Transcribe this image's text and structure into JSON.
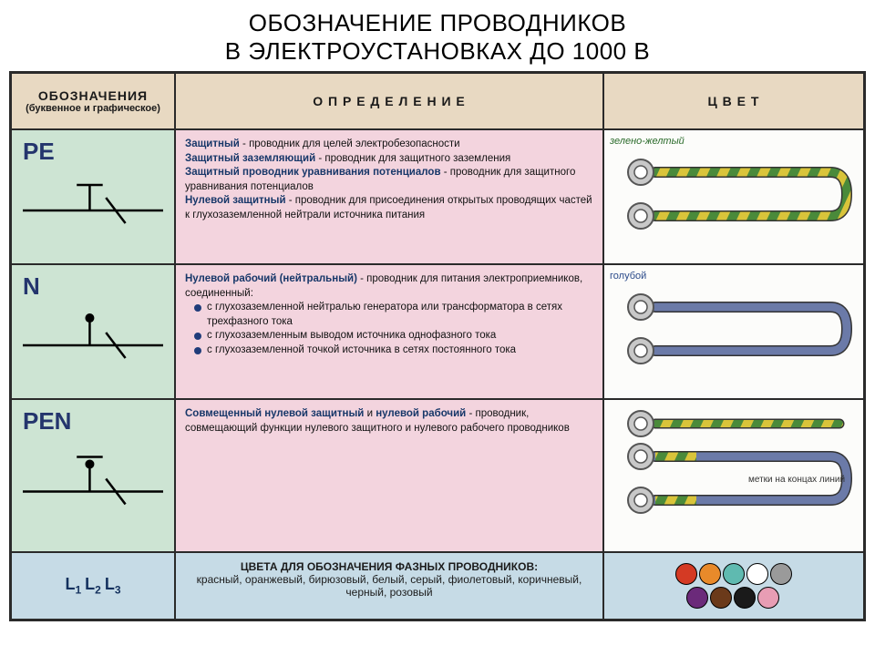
{
  "title": {
    "line1": "ОБОЗНАЧЕНИЕ ПРОВОДНИКОВ",
    "line2": "В ЭЛЕКТРОУСТАНОВКАХ ДО 1000 В"
  },
  "headers": {
    "col_a": "ОБОЗНАЧЕНИЯ",
    "col_a_sub": "(буквенное и графическое)",
    "col_b": "О П Р Е Д Е Л Е Н И Е",
    "col_c": "Ц В Е Т"
  },
  "rows": [
    {
      "symbol": "PE",
      "symbol_glyph": "pe",
      "definition_html": "<b class='term'>Защитный</b> - проводник для целей электробезопасности<br><b class='term'>Защитный заземляющий</b> - проводник для защитного заземления<br><b class='term'>Защитный проводник уравнивания потенциалов</b> - проводник для защитного уравнивания потенциалов<br><b class='term'>Нулевой защитный</b> - проводник для присоединения открытых проводящих частей к глухозаземленной нейтрали источника питания",
      "color_label": "зелено-желтый",
      "color_label_class": "",
      "wire_type": "green-yellow",
      "note": ""
    },
    {
      "symbol": "N",
      "symbol_glyph": "n",
      "definition_html": "<b class='term'>Нулевой рабочий (нейтральный)</b> - проводник для питания электроприемников, соединенный:<br><span class='bullet'><span class='dot'></span><span>с глухозаземленной нейтралью генератора или трансформатора в сетях трехфазного тока</span></span><span class='bullet'><span class='dot'></span><span>с глухозаземленным выводом источника однофазного тока</span></span><span class='bullet'><span class='dot'></span><span>с глухозаземленной точкой источника в сетях постоянного тока</span></span>",
      "color_label": "голубой",
      "color_label_class": "blue",
      "wire_type": "blue",
      "note": ""
    },
    {
      "symbol": "PEN",
      "symbol_glyph": "pen",
      "definition_html": "<b class='term'>Совмещенный нулевой защитный</b> и <b class='term'>нулевой рабочий</b> - проводник, совмещающий функции нулевого защитного и нулевого рабочего проводников",
      "color_label": "",
      "color_label_class": "",
      "wire_type": "pen",
      "note": "метки на концах линий"
    }
  ],
  "footer": {
    "labels": [
      "L1",
      "L2",
      "L3"
    ],
    "text_line1": "ЦВЕТА ДЛЯ ОБОЗНАЧЕНИЯ ФАЗНЫХ ПРОВОДНИКОВ:",
    "text_line2": "красный, оранжевый, бирюзовый, белый, серый, фиолетовый, коричневый, черный, розовый",
    "dot_colors_top": [
      "#d43a24",
      "#e88a2a",
      "#5fbab0",
      "#ffffff",
      "#9a9a9a"
    ],
    "dot_colors_bottom": [
      "#6b2a7a",
      "#6b3a1a",
      "#1a1a1a",
      "#e89db4"
    ]
  },
  "colors": {
    "border": "#2a2a2a",
    "header_bg": "#e8d9c2",
    "symbol_bg": "#cde4d3",
    "def_bg": "#f3d4de",
    "color_bg": "#fcfcfa",
    "footer_bg": "#c6dbe6",
    "term_color": "#173769",
    "wire_blue": "#6b7aa8",
    "wire_green": "#4a8a3a",
    "wire_yellow": "#d9c43a",
    "lug_ring": "#888888",
    "lug_center": "#ffffff"
  },
  "row_heights": {
    "header": 62,
    "pe": 148,
    "n": 148,
    "pen": 168,
    "footer": 74
  }
}
